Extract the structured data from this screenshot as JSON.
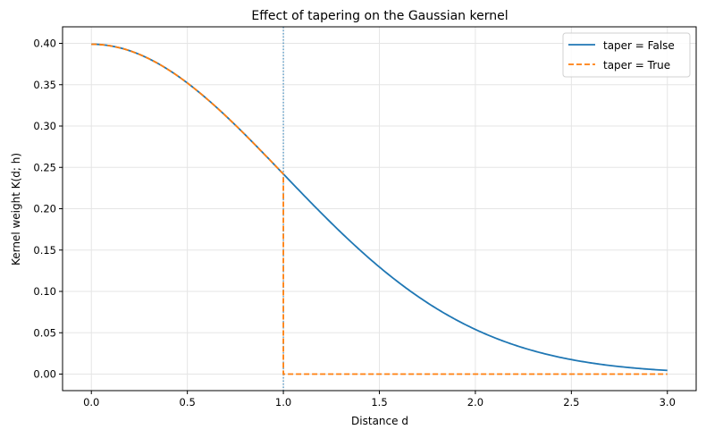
{
  "chart_data": {
    "type": "line",
    "title": "Effect of tapering on the Gaussian kernel",
    "xlabel": "Distance d",
    "ylabel": "Kernel weight K(d; h)",
    "xlim": [
      -0.15,
      3.15
    ],
    "ylim": [
      -0.02,
      0.42
    ],
    "xticks": [
      "0.0",
      "0.5",
      "1.0",
      "1.5",
      "2.0",
      "2.5",
      "3.0"
    ],
    "yticks": [
      "0.00",
      "0.05",
      "0.10",
      "0.15",
      "0.20",
      "0.25",
      "0.30",
      "0.35",
      "0.40"
    ],
    "grid": true,
    "legend_position": "upper right",
    "annotations": [
      {
        "type": "vline",
        "x": 1.0,
        "style": "dotted",
        "color": "#1f77b4"
      }
    ],
    "series": [
      {
        "name": "taper = False",
        "color": "#1f77b4",
        "linestyle": "solid",
        "x": [
          0.0,
          0.25,
          0.5,
          0.75,
          1.0,
          1.25,
          1.5,
          1.75,
          2.0,
          2.25,
          2.5,
          2.75,
          3.0
        ],
        "values": [
          0.399,
          0.387,
          0.352,
          0.301,
          0.242,
          0.183,
          0.13,
          0.086,
          0.054,
          0.032,
          0.018,
          0.009,
          0.004
        ]
      },
      {
        "name": "taper = True",
        "color": "#ff7f0e",
        "linestyle": "dashed",
        "x": [
          0.0,
          0.25,
          0.5,
          0.75,
          1.0,
          1.0,
          1.5,
          2.0,
          2.5,
          3.0
        ],
        "values": [
          0.399,
          0.387,
          0.352,
          0.301,
          0.242,
          0.0,
          0.0,
          0.0,
          0.0,
          0.0
        ]
      }
    ]
  }
}
